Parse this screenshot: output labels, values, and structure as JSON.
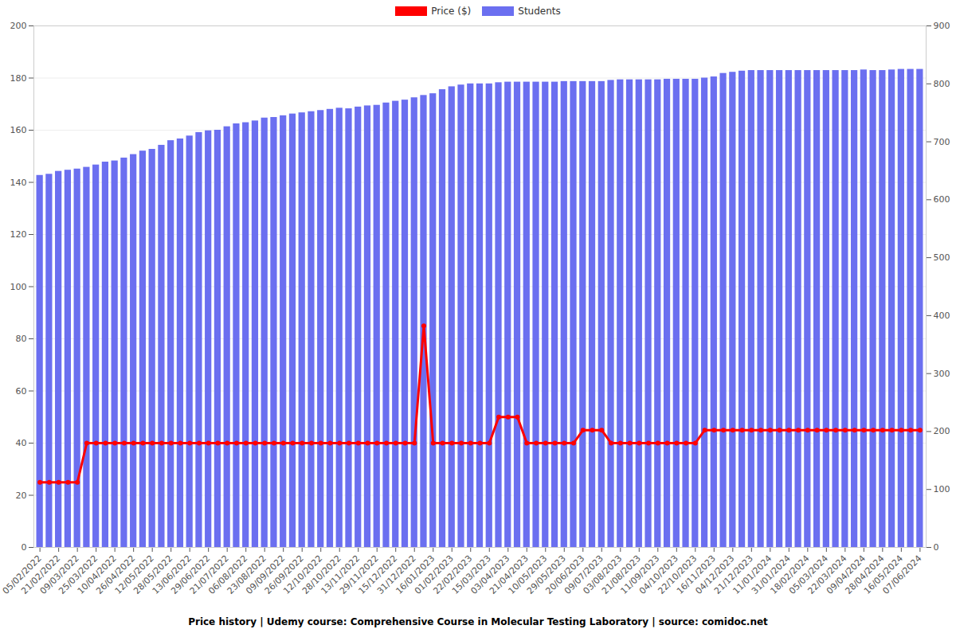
{
  "chart_data": {
    "type": "bar",
    "title": "Price history | Udemy course: Comprehensive Course in Molecular Testing Laboratory | source: comidoc.net",
    "categories": [
      "05/02/2022",
      null,
      "21/02/2022",
      null,
      "09/03/2022",
      null,
      "25/03/2022",
      null,
      "10/04/2022",
      null,
      "26/04/2022",
      null,
      "12/05/2022",
      null,
      "28/05/2022",
      null,
      "13/06/2022",
      null,
      "29/06/2022",
      null,
      "21/07/2022",
      null,
      "06/08/2022",
      null,
      "23/08/2022",
      null,
      "09/09/2022",
      null,
      "26/09/2022",
      null,
      "12/10/2022",
      null,
      "28/10/2022",
      null,
      "13/11/2022",
      null,
      "29/11/2022",
      null,
      "15/12/2022",
      null,
      "31/12/2022",
      null,
      "16/01/2023",
      null,
      "01/02/2023",
      null,
      "22/02/2023",
      null,
      "15/03/2023",
      null,
      "03/04/2023",
      null,
      "21/04/2023",
      null,
      "10/05/2023",
      null,
      "29/05/2023",
      null,
      "20/06/2023",
      null,
      "09/07/2023",
      null,
      "03/08/2023",
      null,
      "21/08/2023",
      null,
      "11/09/2023",
      null,
      "04/10/2023",
      null,
      "22/10/2023",
      null,
      "16/11/2023",
      null,
      "04/12/2023",
      null,
      "21/12/2023",
      null,
      "11/01/2024",
      null,
      "31/01/2024",
      null,
      "18/02/2024",
      null,
      "05/03/2024",
      null,
      "22/03/2024",
      null,
      "09/04/2024",
      null,
      "28/04/2024",
      null,
      "16/05/2024",
      null,
      "07/06/2024"
    ],
    "series": [
      {
        "name": "Price ($)",
        "type": "line",
        "color": "#ff0000",
        "marker": "circle",
        "values": [
          25,
          25,
          25,
          25,
          25,
          40,
          40,
          40,
          40,
          40,
          40,
          40,
          40,
          40,
          40,
          40,
          40,
          40,
          40,
          40,
          40,
          40,
          40,
          40,
          40,
          40,
          40,
          40,
          40,
          40,
          40,
          40,
          40,
          40,
          40,
          40,
          40,
          40,
          40,
          40,
          40,
          85,
          40,
          40,
          40,
          40,
          40,
          40,
          40,
          50,
          50,
          50,
          40,
          40,
          40,
          40,
          40,
          40,
          45,
          45,
          45,
          40,
          40,
          40,
          40,
          40,
          40,
          40,
          40,
          40,
          40,
          45,
          45,
          45,
          45,
          45,
          45,
          45,
          45,
          45,
          45,
          45,
          45,
          45,
          45,
          45,
          45,
          45,
          45,
          45,
          45,
          45,
          45,
          45,
          45
        ]
      },
      {
        "name": "Students",
        "type": "bar",
        "color": "#6b6ff0",
        "axis": "y2",
        "values": [
          642,
          644,
          649,
          651,
          653,
          656,
          660,
          665,
          667,
          672,
          678,
          684,
          687,
          694,
          702,
          705,
          710,
          716,
          719,
          720,
          726,
          731,
          733,
          736,
          741,
          742,
          745,
          748,
          750,
          752,
          754,
          756,
          758,
          757,
          760,
          762,
          763,
          767,
          770,
          772,
          776,
          780,
          783,
          790,
          795,
          798,
          800,
          800,
          800,
          802,
          803,
          803,
          803,
          803,
          803,
          803,
          804,
          804,
          804,
          804,
          804,
          806,
          807,
          807,
          807,
          807,
          807,
          808,
          808,
          808,
          808,
          810,
          812,
          818,
          820,
          822,
          823,
          823,
          823,
          823,
          823,
          823,
          823,
          823,
          823,
          823,
          823,
          823,
          824,
          823,
          823,
          824,
          825,
          825,
          825
        ]
      }
    ],
    "ylim": [
      0,
      200
    ],
    "yticks": [
      0,
      20,
      40,
      60,
      80,
      100,
      120,
      140,
      160,
      180,
      200
    ],
    "y2lim": [
      0,
      900
    ],
    "y2ticks": [
      0,
      100,
      200,
      300,
      400,
      500,
      600,
      700,
      800,
      900
    ],
    "grid": true,
    "legend": "top"
  }
}
